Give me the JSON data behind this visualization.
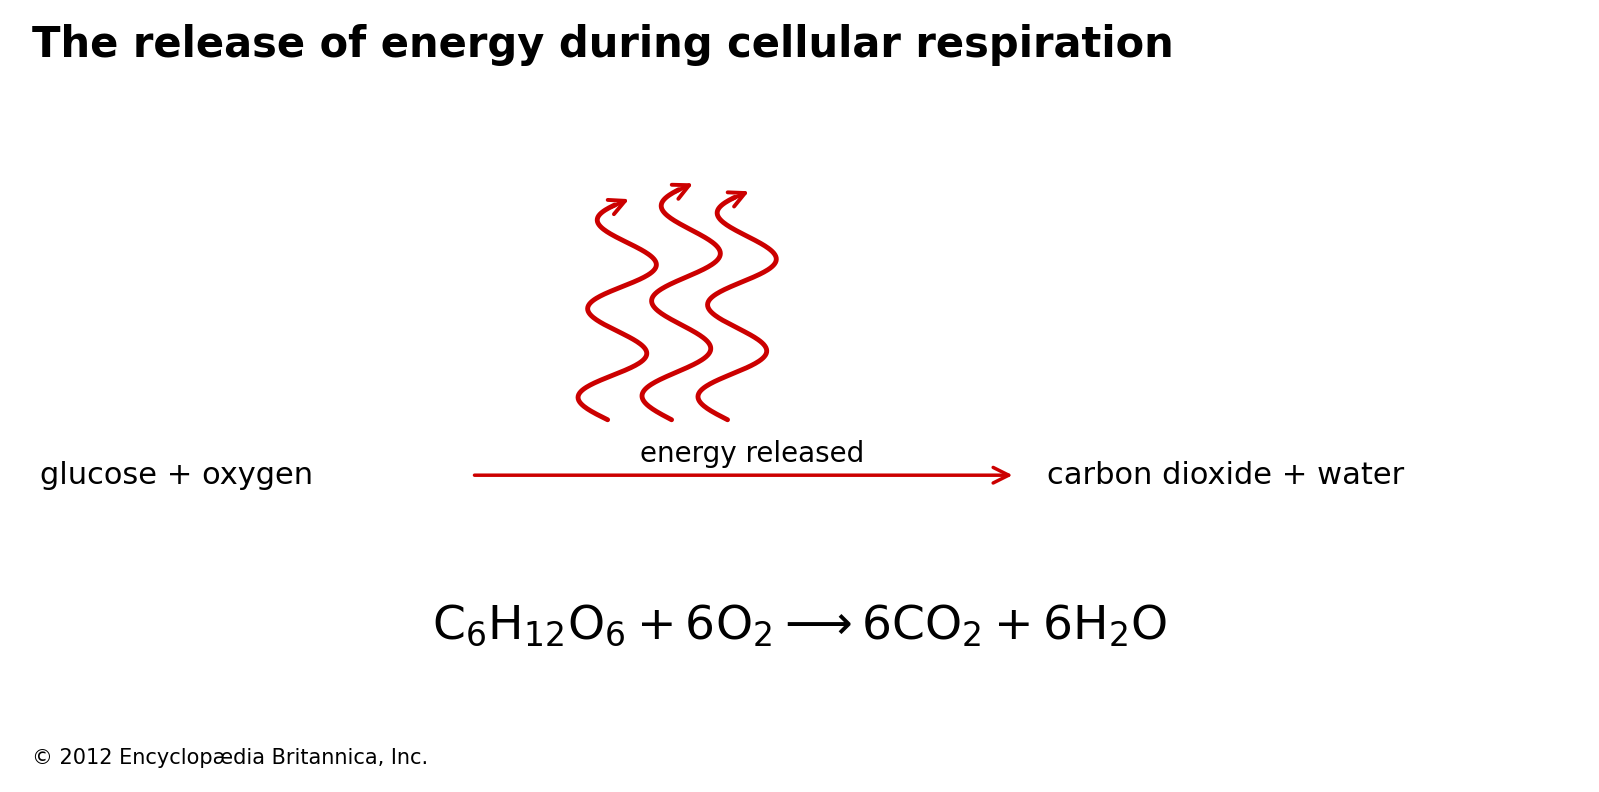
{
  "title": "The release of energy during cellular respiration",
  "title_fontsize": 30,
  "title_fontweight": "bold",
  "background_color": "#ffffff",
  "text_color": "#000000",
  "red_color": "#cc0000",
  "left_label": "glucose + oxygen",
  "right_label": "carbon dioxide + water",
  "energy_label": "energy released",
  "copyright": "© 2012 Encyclopædia Britannica, Inc.",
  "copyright_fontsize": 15,
  "label_fontsize": 22,
  "energy_fontsize": 20,
  "eq_fontsize": 34
}
